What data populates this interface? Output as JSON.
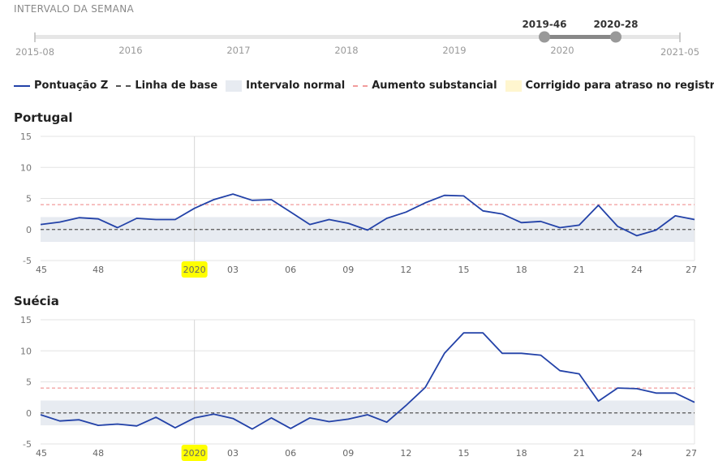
{
  "slider": {
    "title": "INTERVALO DA SEMANA",
    "start_label": "2015-08",
    "end_label": "2021-05",
    "year_labels": [
      "2016",
      "2017",
      "2018",
      "2019",
      "2020"
    ],
    "range_start": "2019-46",
    "range_end": "2020-28"
  },
  "legend": {
    "zscore": "Pontuação Z",
    "baseline": "Linha de base",
    "normal": "Intervalo normal",
    "substantial": "Aumento substancial",
    "corrected": "Corrigido para atraso no registro"
  },
  "colors": {
    "series": "#2342a8",
    "baseline": "#555555",
    "normal_band": "#e7ebf1",
    "substantial": "#f29c9c",
    "highlight": "#ffff00"
  },
  "chart_data": [
    {
      "type": "line",
      "title": "Portugal",
      "x": [
        "45",
        "46",
        "47",
        "48",
        "49",
        "50",
        "51",
        "52",
        "2020",
        "02",
        "03",
        "04",
        "05",
        "06",
        "07",
        "08",
        "09",
        "10",
        "11",
        "12",
        "13",
        "14",
        "15",
        "16",
        "17",
        "18",
        "19",
        "20",
        "21",
        "22",
        "23",
        "24",
        "25",
        "26",
        "27"
      ],
      "x_tick_labels": [
        "45",
        "48",
        "2020",
        "03",
        "06",
        "09",
        "12",
        "15",
        "18",
        "21",
        "24",
        "27"
      ],
      "highlighted_tick": "2020",
      "series": [
        {
          "values": [
            0.8,
            1.2,
            1.9,
            1.7,
            0.3,
            1.8,
            1.6,
            1.6,
            3.4,
            4.8,
            5.7,
            4.7,
            4.8,
            2.8,
            0.8,
            1.6,
            1.0,
            -0.1,
            1.8,
            2.8,
            4.3,
            5.5,
            5.4,
            3.0,
            2.5,
            1.1,
            1.3,
            0.3,
            0.7,
            3.9,
            0.5,
            -1.0,
            -0.1,
            2.2,
            1.6
          ]
        }
      ],
      "baseline": 0,
      "normal_range": [
        -2,
        2
      ],
      "substantial_increase": 4,
      "ylim": [
        -5,
        15
      ],
      "y_ticks": [
        -5,
        0,
        5,
        10,
        15
      ]
    },
    {
      "type": "line",
      "title": "Suécia",
      "x": [
        "45",
        "46",
        "47",
        "48",
        "49",
        "50",
        "51",
        "52",
        "2020",
        "02",
        "03",
        "04",
        "05",
        "06",
        "07",
        "08",
        "09",
        "10",
        "11",
        "12",
        "13",
        "14",
        "15",
        "16",
        "17",
        "18",
        "19",
        "20",
        "21",
        "22",
        "23",
        "24",
        "25",
        "26",
        "27"
      ],
      "x_tick_labels": [
        "45",
        "48",
        "2020",
        "03",
        "06",
        "09",
        "12",
        "15",
        "18",
        "21",
        "24",
        "27"
      ],
      "highlighted_tick": "2020",
      "series": [
        {
          "values": [
            -0.3,
            -1.3,
            -1.1,
            -2.0,
            -1.8,
            -2.1,
            -0.7,
            -2.4,
            -0.8,
            -0.2,
            -0.9,
            -2.6,
            -0.8,
            -2.5,
            -0.8,
            -1.4,
            -1.0,
            -0.3,
            -1.5,
            1.2,
            4.1,
            9.6,
            12.9,
            12.9,
            9.6,
            9.6,
            9.3,
            6.8,
            6.3,
            1.9,
            4.0,
            3.9,
            3.2,
            3.2,
            1.7
          ]
        }
      ],
      "baseline": 0,
      "normal_range": [
        -2,
        2
      ],
      "substantial_increase": 4,
      "ylim": [
        -5,
        15
      ],
      "y_ticks": [
        -5,
        0,
        5,
        10,
        15
      ]
    }
  ]
}
